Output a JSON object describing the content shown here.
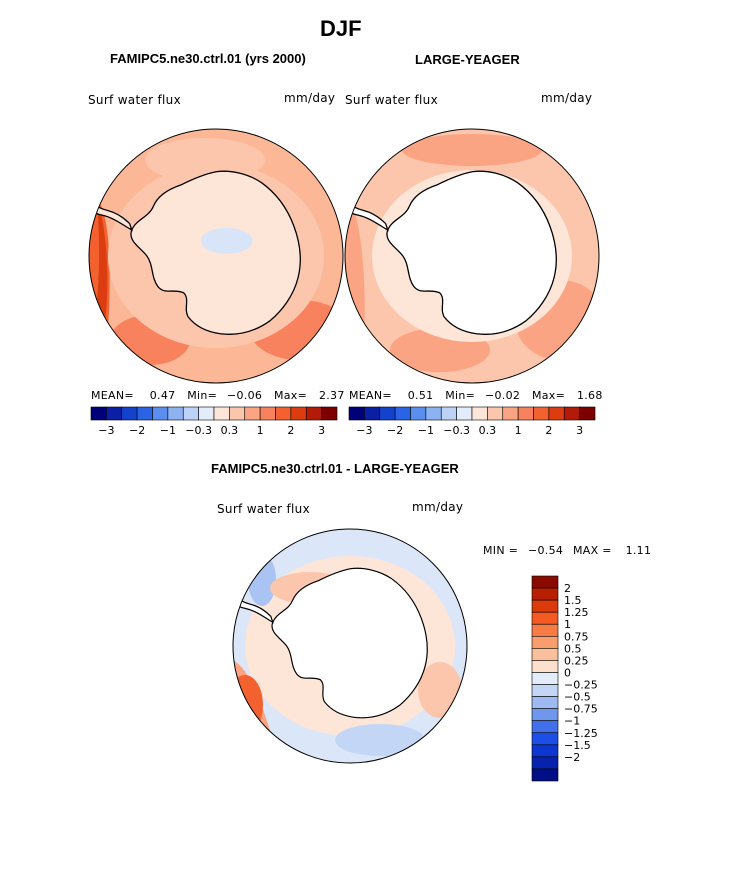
{
  "header": {
    "season": "DJF",
    "left_title": "FAMIPC5.ne30.ctrl.01 (yrs 2000)",
    "right_title": "LARGE-YEAGER",
    "diff_title": "FAMIPC5.ne30.ctrl.01 - LARGE-YEAGER"
  },
  "panels": {
    "left": {
      "variable": "Surf water flux",
      "units": "mm/day",
      "stats": {
        "mean_label": "MEAN=",
        "mean": "0.47",
        "min_label": "Min=",
        "min": "−0.06",
        "max_label": "Max=",
        "max": "2.37"
      }
    },
    "right": {
      "variable": "Surf water flux",
      "units": "mm/day",
      "stats": {
        "mean_label": "MEAN=",
        "mean": "0.51",
        "min_label": "Min=",
        "min": "−0.02",
        "max_label": "Max=",
        "max": "1.68"
      }
    },
    "diff": {
      "variable": "Surf water flux",
      "units": "mm/day",
      "stats": {
        "min_label": "MIN =",
        "min": "−0.54",
        "max_label": "MAX =",
        "max": "1.11"
      }
    }
  },
  "chart_data": [
    {
      "type": "heatmap",
      "projection": "south-polar-stereographic",
      "title": "FAMIPC5.ne30.ctrl.01 (yrs 2000)",
      "variable": "Surf water flux",
      "units": "mm/day",
      "mean": 0.47,
      "min": -0.06,
      "max": 2.37
    },
    {
      "type": "heatmap",
      "projection": "south-polar-stereographic",
      "title": "LARGE-YEAGER",
      "variable": "Surf water flux",
      "units": "mm/day",
      "mean": 0.51,
      "min": -0.02,
      "max": 1.68,
      "land_masked": true
    },
    {
      "type": "heatmap",
      "projection": "south-polar-stereographic",
      "title": "FAMIPC5.ne30.ctrl.01 - LARGE-YEAGER",
      "variable": "Surf water flux",
      "units": "mm/day",
      "min": -0.54,
      "max": 1.11,
      "land_masked": true
    }
  ],
  "colorbars": {
    "horizontal": {
      "colors": [
        "#00007a",
        "#0a1fa3",
        "#1343cc",
        "#2b63e6",
        "#5a8ff0",
        "#8db2f2",
        "#bcd3f7",
        "#e2ecfb",
        "#fde5d8",
        "#fcc6ad",
        "#fba483",
        "#f8825d",
        "#f3612f",
        "#db3d10",
        "#b31a08",
        "#7d0000"
      ],
      "tick_labels": [
        "−3",
        "−2",
        "−1",
        "−0.3",
        "0.3",
        "1",
        "2",
        "3"
      ]
    },
    "vertical": {
      "colors": [
        "#8a0a00",
        "#b81f00",
        "#dd3a0c",
        "#f45a22",
        "#f77b45",
        "#f99d6d",
        "#fbbf9b",
        "#fde0cc",
        "#e3ecf9",
        "#c3d6f6",
        "#9dbaf2",
        "#6f97ee",
        "#4270ea",
        "#1e4ee8",
        "#0d35d0",
        "#0523ad",
        "#000f85"
      ],
      "tick_labels": [
        "2",
        "1.5",
        "1.25",
        "1",
        "0.75",
        "0.5",
        "0.25",
        "0",
        "−0.25",
        "−0.5",
        "−0.75",
        "−1",
        "−1.25",
        "−1.5",
        "−2"
      ]
    }
  },
  "colors": {
    "ocean_warm": "#fbb796",
    "ocean_strong": "#f3612f",
    "ice_light": "#fde5d8",
    "land_white": "#ffffff",
    "diff_blue": "#c9d9f5"
  }
}
